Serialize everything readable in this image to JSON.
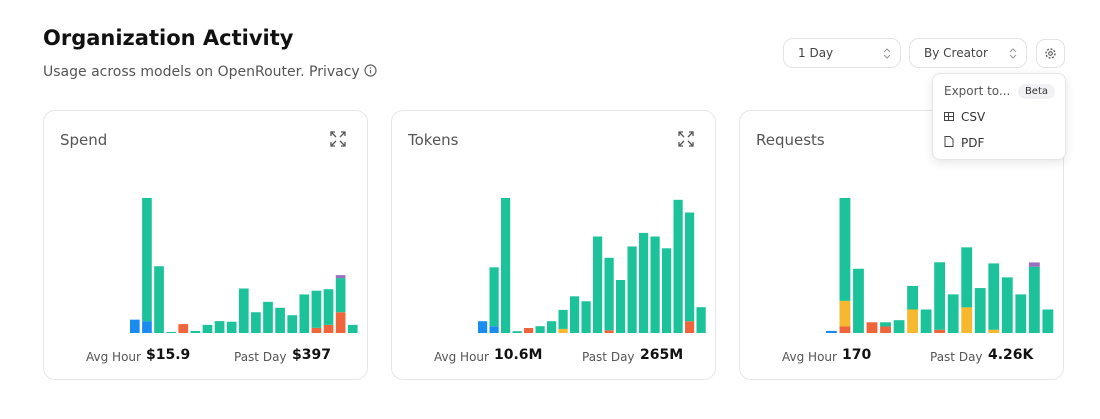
{
  "header": {
    "title": "Organization Activity",
    "subtitle": "Usage across models on OpenRouter. Privacy"
  },
  "controls": {
    "range": "1 Day",
    "group": "By Creator"
  },
  "menu": {
    "heading": "Export to...",
    "badge": "Beta",
    "items": [
      "CSV",
      "PDF"
    ]
  },
  "chart_data": [
    {
      "type": "bar",
      "stacked": true,
      "title": "Spend",
      "stats": [
        {
          "label": "Avg Hour",
          "value": "$15.9"
        },
        {
          "label": "Past Day",
          "value": "$397"
        }
      ],
      "series": [
        {
          "color": "#1a8cf0",
          "values": [
            9,
            8,
            0,
            0,
            0,
            0,
            0,
            0,
            0,
            0,
            0,
            0,
            0,
            0,
            0,
            0,
            0,
            0,
            0
          ]
        },
        {
          "color": "#f0643c",
          "values": [
            0,
            0,
            0,
            0,
            6,
            0,
            0,
            0,
            0,
            0,
            0,
            0,
            0,
            0,
            0,
            3.5,
            5.5,
            14,
            0
          ]
        },
        {
          "color": "#1cc29a",
          "values": [
            0,
            83,
            45,
            0.7,
            0,
            1.4,
            5.5,
            8,
            7.6,
            30,
            14,
            21,
            17,
            12,
            26,
            25,
            24,
            23,
            5.5
          ]
        },
        {
          "color": "#9b6fc0",
          "values": [
            0,
            0,
            0,
            0,
            0,
            0,
            0,
            0,
            0,
            0,
            0,
            0,
            0,
            0,
            0,
            0,
            0,
            2,
            0
          ]
        }
      ]
    },
    {
      "type": "bar",
      "stacked": true,
      "title": "Tokens",
      "stats": [
        {
          "label": "Avg Hour",
          "value": "10.6M"
        },
        {
          "label": "Past Day",
          "value": "265M"
        }
      ],
      "series": [
        {
          "color": "#1a8cf0",
          "values": [
            2.6,
            1.5,
            0,
            0,
            0,
            0,
            0,
            0,
            0,
            0,
            0,
            0,
            0,
            0,
            0,
            0,
            0,
            0,
            0,
            0
          ]
        },
        {
          "color": "#f0643c",
          "values": [
            0,
            0,
            0,
            0,
            1.1,
            0,
            0,
            0,
            0,
            0,
            0,
            0.6,
            0,
            0,
            0,
            0,
            0,
            0,
            2.6,
            0
          ]
        },
        {
          "color": "#f5b82e",
          "values": [
            0,
            0,
            0,
            0,
            0,
            0,
            0,
            0.9,
            0,
            0,
            0,
            0,
            0,
            0,
            0,
            0,
            0,
            0,
            0,
            0
          ]
        },
        {
          "color": "#1cc29a",
          "values": [
            0,
            13,
            29.8,
            0.4,
            0,
            1.5,
            2.6,
            4.2,
            8.1,
            7,
            21.3,
            16,
            11.7,
            19.1,
            22.1,
            21.3,
            18.7,
            29.4,
            24,
            5.7
          ]
        }
      ]
    },
    {
      "type": "bar",
      "stacked": true,
      "title": "Requests",
      "stats": [
        {
          "label": "Avg Hour",
          "value": "170"
        },
        {
          "label": "Past Day",
          "value": "4.26K"
        }
      ],
      "series": [
        {
          "color": "#1a8cf0",
          "values": [
            11,
            0,
            0,
            0,
            0,
            0,
            0,
            0,
            0,
            0,
            0,
            0,
            0,
            0,
            0,
            0,
            0
          ]
        },
        {
          "color": "#f0643c",
          "values": [
            0,
            34,
            0,
            56,
            34,
            0,
            0,
            0,
            17,
            0,
            0,
            0,
            0,
            0,
            0,
            0,
            0
          ]
        },
        {
          "color": "#f5b82e",
          "values": [
            0,
            134,
            0,
            0,
            0,
            0,
            123,
            0,
            0,
            0,
            134,
            0,
            17,
            0,
            0,
            0,
            0
          ]
        },
        {
          "color": "#1cc29a",
          "values": [
            0,
            538,
            336,
            0,
            22,
            67,
            123,
            123,
            353,
            202,
            314,
            235,
            347,
            291,
            202,
            347,
            123
          ]
        },
        {
          "color": "#9b6fc0",
          "values": [
            0,
            0,
            0,
            0,
            0,
            0,
            0,
            0,
            0,
            0,
            0,
            0,
            0,
            0,
            0,
            22,
            0
          ]
        }
      ]
    }
  ]
}
